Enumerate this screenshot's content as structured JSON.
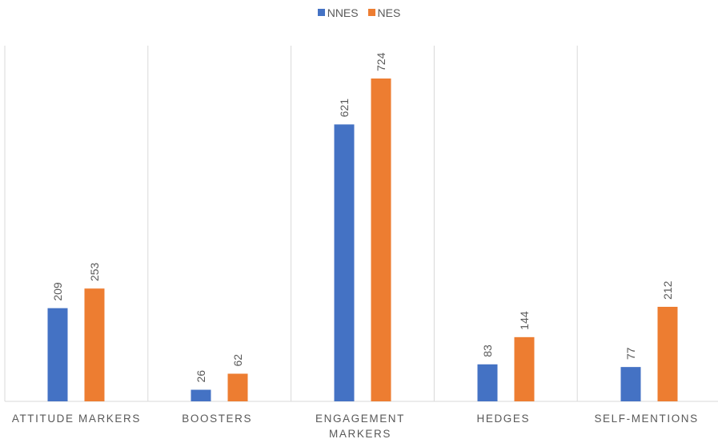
{
  "chart_data": {
    "type": "bar",
    "title": "",
    "xlabel": "",
    "ylabel": "",
    "categories": [
      [
        "ATTITUDE MARKERS"
      ],
      [
        "BOOSTERS"
      ],
      [
        "ENGAGEMENT",
        "MARKERS"
      ],
      [
        "HEDGES"
      ],
      [
        "SELF-MENTIONS"
      ]
    ],
    "series": [
      {
        "name": "NNES",
        "color": "#4472C4",
        "values": [
          209,
          26,
          621,
          83,
          77
        ]
      },
      {
        "name": "NES",
        "color": "#ED7D31",
        "values": [
          253,
          62,
          724,
          144,
          212
        ]
      }
    ],
    "ylim": [
      0,
      724
    ],
    "grid": "vertical-category-separators",
    "legend": "top-center"
  }
}
